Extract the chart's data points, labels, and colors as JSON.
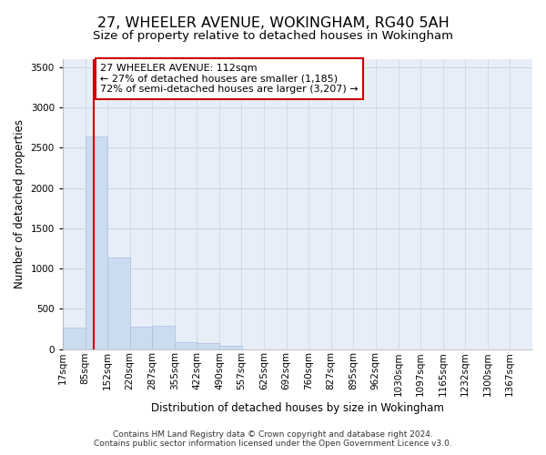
{
  "title": "27, WHEELER AVENUE, WOKINGHAM, RG40 5AH",
  "subtitle": "Size of property relative to detached houses in Wokingham",
  "xlabel": "Distribution of detached houses by size in Wokingham",
  "ylabel": "Number of detached properties",
  "bar_color": "#ccdcf0",
  "bar_edge_color": "#aac0de",
  "grid_color": "#c8d4e8",
  "background_color": "#e8eef8",
  "annotation_text": "27 WHEELER AVENUE: 112sqm\n← 27% of detached houses are smaller (1,185)\n72% of semi-detached houses are larger (3,207) →",
  "annotation_box_color": "#ffffff",
  "annotation_box_edge": "#cc0000",
  "vline_x": 112,
  "vline_color": "#cc0000",
  "categories": [
    "17sqm",
    "85sqm",
    "152sqm",
    "220sqm",
    "287sqm",
    "355sqm",
    "422sqm",
    "490sqm",
    "557sqm",
    "625sqm",
    "692sqm",
    "760sqm",
    "827sqm",
    "895sqm",
    "962sqm",
    "1030sqm",
    "1097sqm",
    "1165sqm",
    "1232sqm",
    "1300sqm",
    "1367sqm"
  ],
  "bin_edges": [
    17,
    85,
    152,
    220,
    287,
    355,
    422,
    490,
    557,
    625,
    692,
    760,
    827,
    895,
    962,
    1030,
    1097,
    1165,
    1232,
    1300,
    1367
  ],
  "values": [
    270,
    2640,
    1140,
    280,
    285,
    90,
    70,
    45,
    0,
    0,
    0,
    0,
    0,
    0,
    0,
    0,
    0,
    0,
    0,
    0,
    0
  ],
  "ylim": [
    0,
    3600
  ],
  "yticks": [
    0,
    500,
    1000,
    1500,
    2000,
    2500,
    3000,
    3500
  ],
  "footer_text": "Contains HM Land Registry data © Crown copyright and database right 2024.\nContains public sector information licensed under the Open Government Licence v3.0.",
  "title_fontsize": 11.5,
  "subtitle_fontsize": 9.5,
  "axis_label_fontsize": 8.5,
  "tick_fontsize": 7.5,
  "annotation_fontsize": 8,
  "footer_fontsize": 6.5
}
